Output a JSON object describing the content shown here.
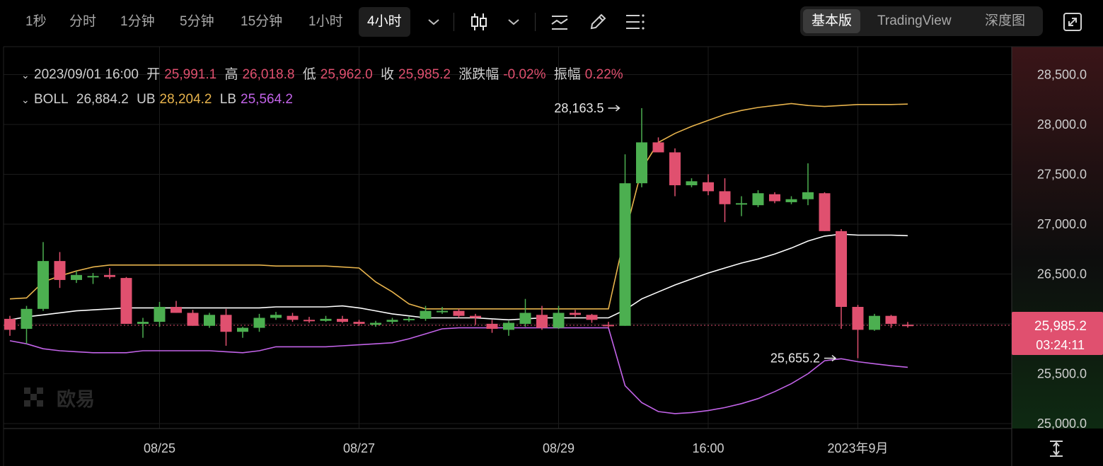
{
  "toolbar": {
    "timeframes": [
      "1秒",
      "分时",
      "1分钟",
      "5分钟",
      "15分钟",
      "1小时",
      "4小时"
    ],
    "active_timeframe": "4小时",
    "views": [
      "基本版",
      "TradingView",
      "深度图"
    ],
    "active_view": "基本版",
    "icons": [
      "chevron-down-icon",
      "candlestick-icon",
      "chevron-down-icon",
      "indicator-icon",
      "pencil-icon",
      "settings-list-icon",
      "fullscreen-icon"
    ]
  },
  "ohlc": {
    "date": "2023/09/01 16:00",
    "open_label": "开",
    "open": "25,991.1",
    "high_label": "高",
    "high": "26,018.8",
    "low_label": "低",
    "low": "25,962.0",
    "close_label": "收",
    "close": "25,985.2",
    "change_label": "涨跌幅",
    "change": "-0.02%",
    "amp_label": "振幅",
    "amp": "0.22%"
  },
  "boll": {
    "name": "BOLL",
    "mid": "26,884.2",
    "ub_label": "UB",
    "ub": "28,204.2",
    "lb_label": "LB",
    "lb": "25,564.2"
  },
  "watermark": "欧易",
  "colors": {
    "up": "#4caf50",
    "down": "#e0506f",
    "mid": "#ffffff",
    "ub": "#e7b34c",
    "lb": "#c263e8"
  },
  "chart_data": {
    "type": "candlestick",
    "y_range": [
      24950,
      28780
    ],
    "y_ticks": [
      25000,
      25500,
      26000,
      26500,
      27000,
      27500,
      28000,
      28500
    ],
    "y_tick_labels": [
      "25,000.0",
      "25,500.0",
      "26,000.0",
      "26,500.0",
      "27,000.0",
      "27,500.0",
      "28,000.0",
      "28,500.0"
    ],
    "x_labels": [
      "08/25",
      "08/27",
      "08/29",
      "16:00",
      "2023年9月"
    ],
    "x_label_index": [
      9,
      21,
      33,
      42,
      51
    ],
    "high_marker": {
      "label": "28,163.5",
      "value": 28163.5,
      "index": 37
    },
    "low_marker": {
      "label": "25,655.2",
      "value": 25655.2,
      "index": 50
    },
    "last_price": {
      "value": 25985.2,
      "label": "25,985.2",
      "countdown": "03:24:11"
    },
    "candles": [
      [
        26050,
        26080,
        25880,
        25940
      ],
      [
        25950,
        26180,
        25800,
        26150
      ],
      [
        26150,
        26820,
        26130,
        26630
      ],
      [
        26630,
        26720,
        26360,
        26440
      ],
      [
        26440,
        26530,
        26410,
        26490
      ],
      [
        26470,
        26510,
        26400,
        26480
      ],
      [
        26490,
        26560,
        26450,
        26470
      ],
      [
        26460,
        26470,
        26000,
        26000
      ],
      [
        26000,
        26060,
        25860,
        26020
      ],
      [
        26020,
        26220,
        25970,
        26170
      ],
      [
        26170,
        26230,
        26110,
        26110
      ],
      [
        26110,
        26140,
        25980,
        25980
      ],
      [
        25980,
        26110,
        25960,
        26090
      ],
      [
        26090,
        26150,
        25780,
        25920
      ],
      [
        25920,
        25970,
        25860,
        25960
      ],
      [
        25960,
        26100,
        25920,
        26060
      ],
      [
        26060,
        26120,
        26040,
        26090
      ],
      [
        26080,
        26110,
        26020,
        26040
      ],
      [
        26040,
        26070,
        26010,
        26030
      ],
      [
        26030,
        26080,
        26020,
        26050
      ],
      [
        26050,
        26080,
        26010,
        26020
      ],
      [
        26020,
        26040,
        25980,
        26000
      ],
      [
        25990,
        26030,
        25970,
        26010
      ],
      [
        26020,
        26060,
        26000,
        26040
      ],
      [
        26040,
        26070,
        26020,
        26050
      ],
      [
        26050,
        26180,
        26030,
        26130
      ],
      [
        26130,
        26170,
        26100,
        26130
      ],
      [
        26130,
        26150,
        26060,
        26080
      ],
      [
        26080,
        26100,
        25990,
        26060
      ],
      [
        26000,
        26040,
        25910,
        25950
      ],
      [
        25940,
        26030,
        25880,
        26010
      ],
      [
        26000,
        26250,
        25970,
        26110
      ],
      [
        26090,
        26180,
        25940,
        25960
      ],
      [
        25960,
        26180,
        25950,
        26110
      ],
      [
        26110,
        26140,
        26070,
        26090
      ],
      [
        26090,
        26100,
        26010,
        26040
      ],
      [
        25990,
        26020,
        25960,
        25980
      ],
      [
        25980,
        27700,
        25980,
        27410
      ],
      [
        27410,
        28163.5,
        27370,
        27820
      ],
      [
        27820,
        27870,
        27720,
        27720
      ],
      [
        27720,
        27760,
        27280,
        27390
      ],
      [
        27390,
        27460,
        27370,
        27430
      ],
      [
        27420,
        27500,
        27290,
        27330
      ],
      [
        27330,
        27460,
        27020,
        27200
      ],
      [
        27200,
        27280,
        27080,
        27210
      ],
      [
        27190,
        27340,
        27170,
        27310
      ],
      [
        27300,
        27320,
        27210,
        27230
      ],
      [
        27220,
        27280,
        27200,
        27250
      ],
      [
        27250,
        27610,
        27190,
        27320
      ],
      [
        27310,
        27320,
        26930,
        26930
      ],
      [
        26930,
        26950,
        25950,
        26170
      ],
      [
        26170,
        26190,
        25655.2,
        25940
      ],
      [
        25940,
        26100,
        25930,
        26080
      ],
      [
        26080,
        26090,
        25960,
        26000
      ],
      [
        25991.1,
        26018.8,
        25962.0,
        25985.2
      ]
    ],
    "boll_mid": [
      26040,
      26070,
      26090,
      26110,
      26130,
      26140,
      26150,
      26160,
      26160,
      26160,
      26160,
      26160,
      26160,
      26160,
      26160,
      26160,
      26170,
      26170,
      26170,
      26170,
      26180,
      26160,
      26130,
      26100,
      26080,
      26060,
      26060,
      26060,
      26060,
      26050,
      26040,
      26050,
      26060,
      26060,
      26060,
      26060,
      26060,
      26140,
      26250,
      26320,
      26390,
      26450,
      26510,
      26560,
      26610,
      26650,
      26700,
      26760,
      26830,
      26880,
      26900,
      26890,
      26890,
      26890,
      26884.2
    ],
    "boll_ub": [
      26250,
      26260,
      26420,
      26480,
      26530,
      26570,
      26590,
      26590,
      26590,
      26590,
      26590,
      26590,
      26590,
      26590,
      26590,
      26590,
      26580,
      26580,
      26580,
      26580,
      26570,
      26560,
      26420,
      26320,
      26200,
      26150,
      26150,
      26150,
      26150,
      26150,
      26150,
      26150,
      26150,
      26150,
      26150,
      26150,
      26150,
      26900,
      27550,
      27820,
      27910,
      27980,
      28040,
      28100,
      28140,
      28170,
      28190,
      28210,
      28190,
      28180,
      28190,
      28200,
      28200,
      28200,
      28204.2
    ],
    "boll_lb": [
      25830,
      25800,
      25750,
      25730,
      25720,
      25710,
      25710,
      25710,
      25730,
      25730,
      25730,
      25730,
      25730,
      25720,
      25710,
      25730,
      25770,
      25770,
      25770,
      25770,
      25780,
      25790,
      25800,
      25810,
      25850,
      25900,
      25950,
      25960,
      25960,
      25960,
      25960,
      25960,
      25960,
      25960,
      25960,
      25960,
      25960,
      25380,
      25210,
      25120,
      25100,
      25110,
      25130,
      25160,
      25200,
      25250,
      25320,
      25400,
      25500,
      25630,
      25650,
      25620,
      25600,
      25580,
      25564.2
    ]
  }
}
